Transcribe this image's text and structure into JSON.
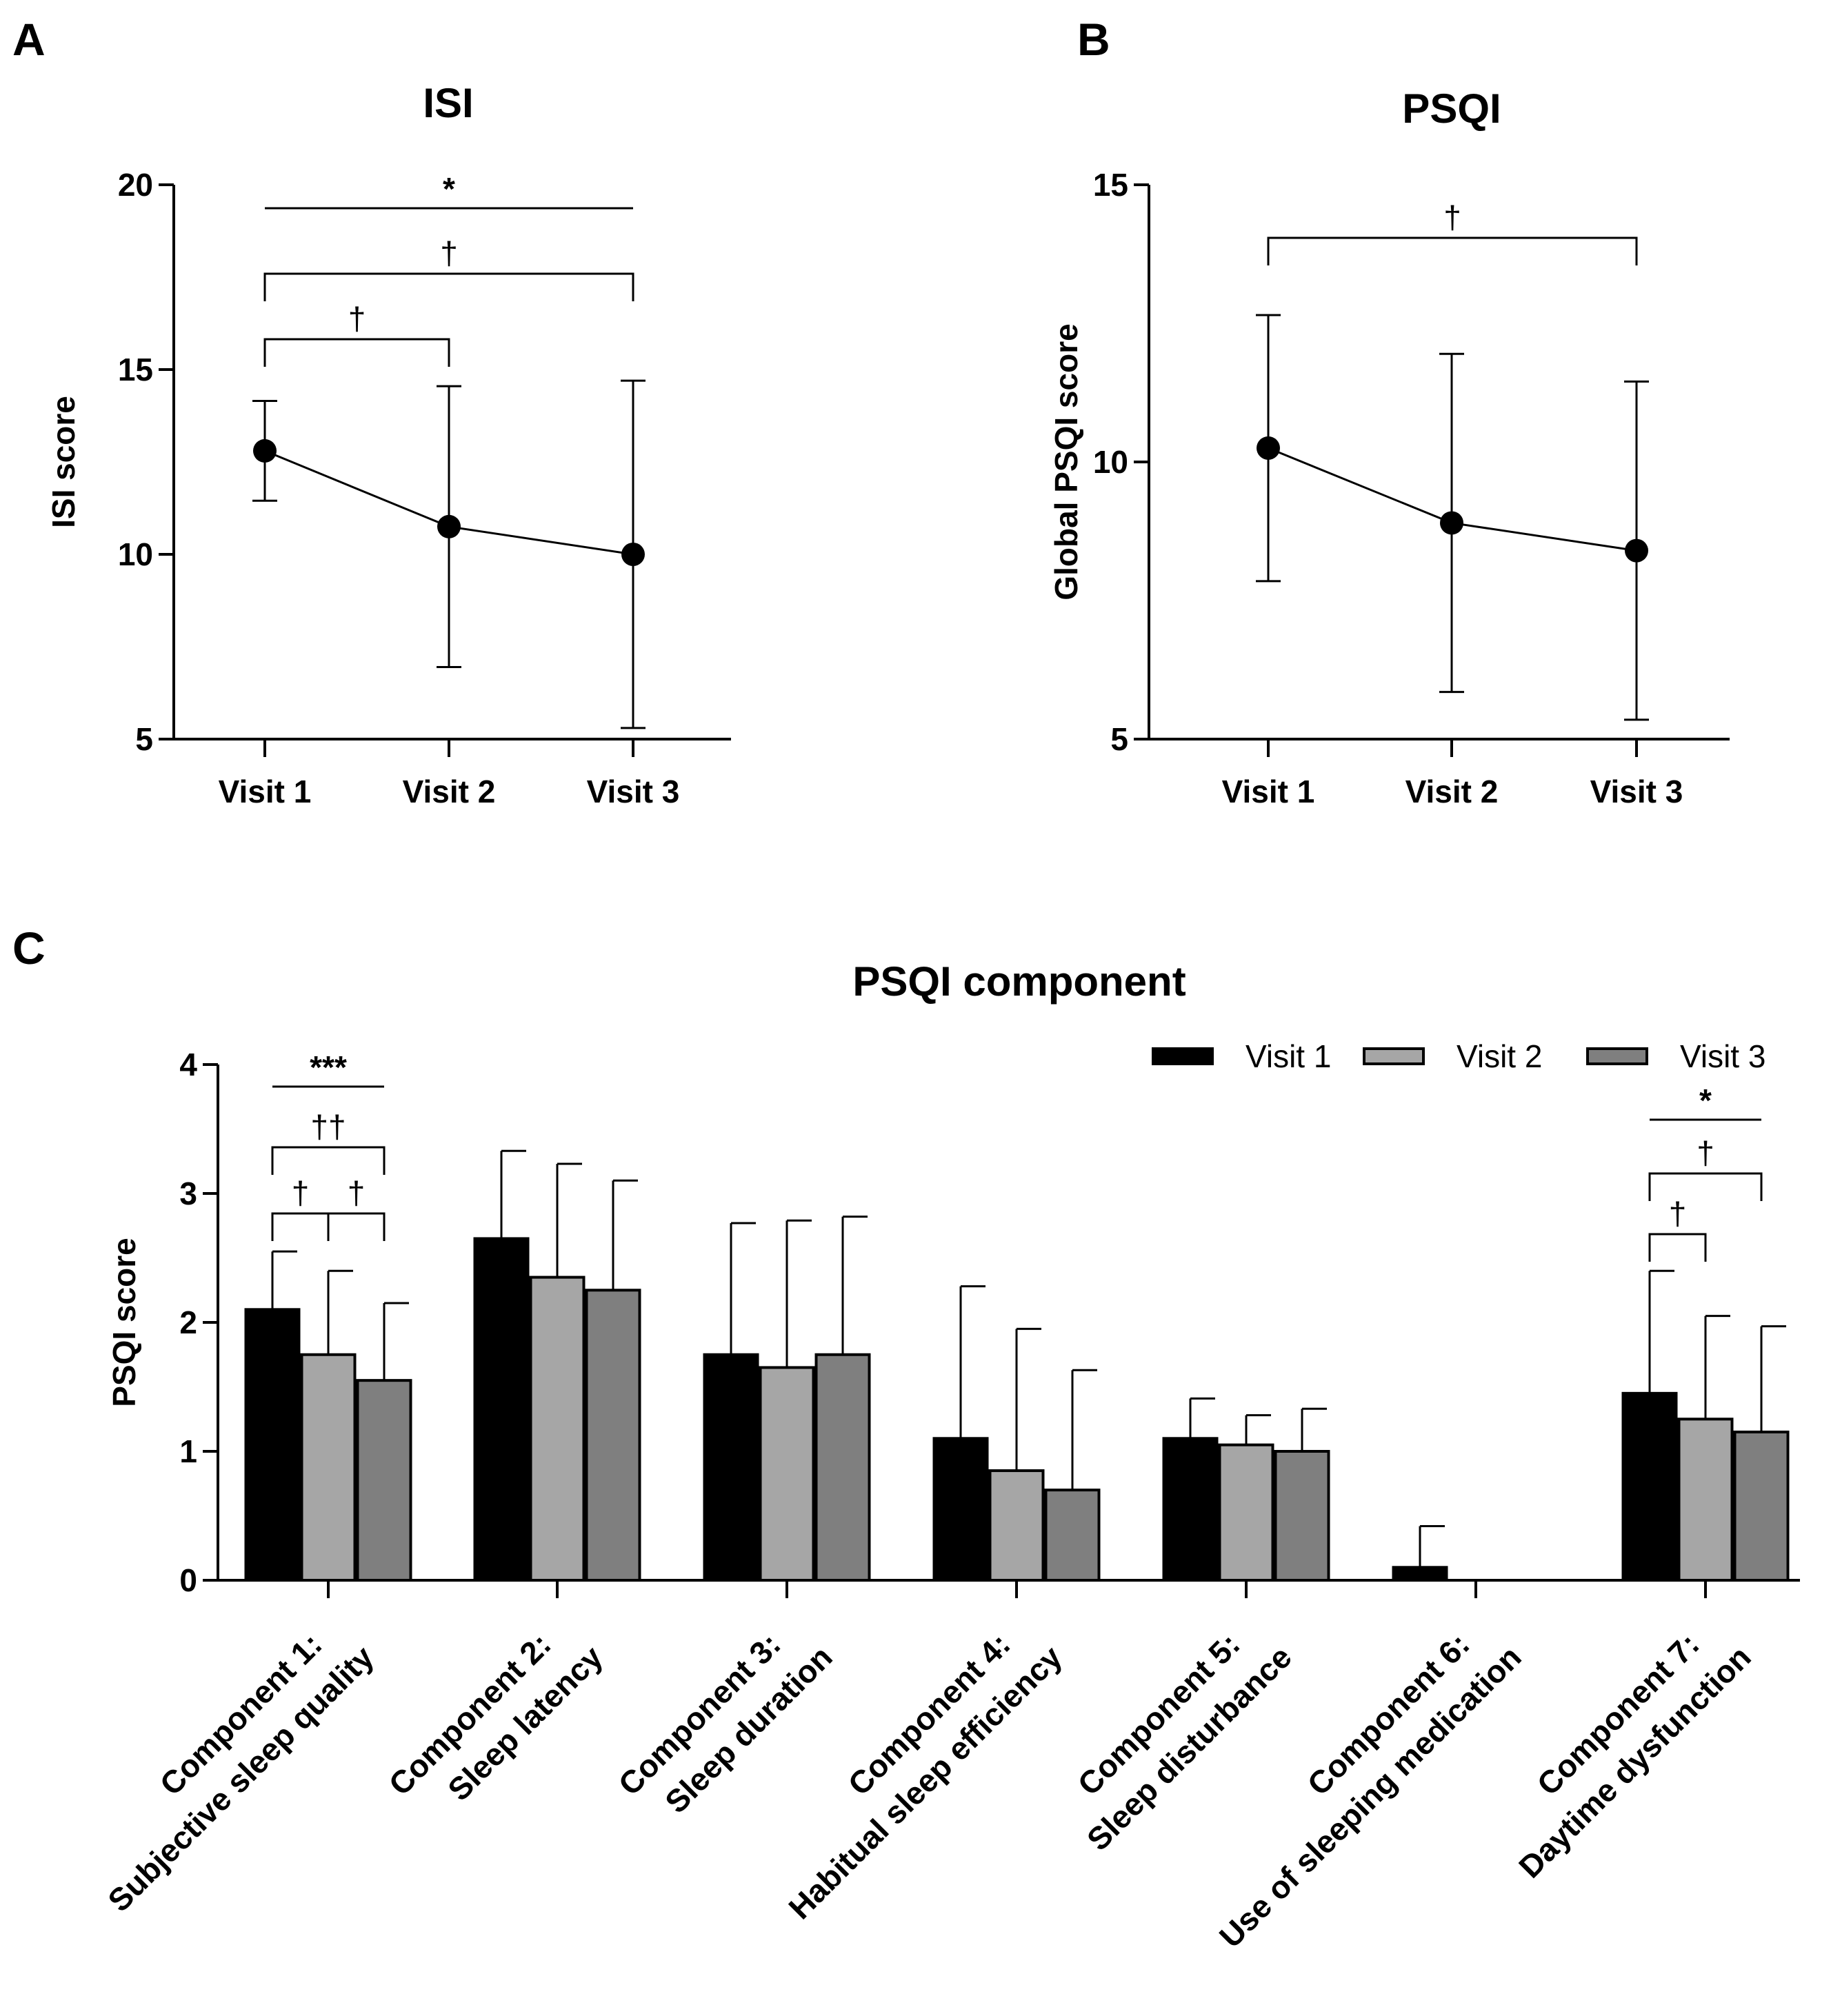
{
  "chart_data": [
    {
      "panel": "A",
      "type": "line",
      "title": "ISI",
      "ylabel": "ISI score",
      "xlabel": "",
      "ylim": [
        5,
        20
      ],
      "yticks": [
        "5",
        "10",
        "15",
        "20"
      ],
      "categories": [
        "Visit 1",
        "Visit 2",
        "Visit 3"
      ],
      "series": [
        {
          "name": "ISI",
          "values": [
            12.8,
            10.75,
            10.0
          ],
          "errors": [
            1.35,
            3.8,
            4.7
          ]
        }
      ],
      "annotations": [
        {
          "from": 1,
          "to": 3,
          "label": "*",
          "style": "line"
        },
        {
          "from": 1,
          "to": 3,
          "label": "†",
          "style": "bracket"
        },
        {
          "from": 1,
          "to": 2,
          "label": "†",
          "style": "bracket"
        }
      ]
    },
    {
      "panel": "B",
      "type": "line",
      "title": "PSQI",
      "ylabel": "Global PSQI score",
      "xlabel": "",
      "ylim": [
        5,
        15
      ],
      "yticks": [
        "5",
        "10",
        "15"
      ],
      "categories": [
        "Visit 1",
        "Visit 2",
        "Visit 3"
      ],
      "series": [
        {
          "name": "PSQI",
          "values": [
            10.25,
            8.9,
            8.4
          ],
          "errors": [
            2.4,
            3.05,
            3.05
          ]
        }
      ],
      "annotations": [
        {
          "from": 1,
          "to": 3,
          "label": "†",
          "style": "bracket"
        }
      ]
    },
    {
      "panel": "C",
      "type": "bar",
      "title": "PSQI component",
      "ylabel": "PSQI score",
      "xlabel": "",
      "ylim": [
        0,
        4
      ],
      "yticks": [
        "0",
        "1",
        "2",
        "3",
        "4"
      ],
      "categories": [
        [
          "Component 1:",
          "Subjective sleep quality"
        ],
        [
          "Component 2:",
          "Sleep latency"
        ],
        [
          "Component 3:",
          "Sleep duration"
        ],
        [
          "Component 4:",
          "Habitual sleep efficiency"
        ],
        [
          "Component 5:",
          "Sleep disturbance"
        ],
        [
          "Component 6:",
          "Use of sleeping medication"
        ],
        [
          "Component 7:",
          "Daytime dysfunction"
        ]
      ],
      "series": [
        {
          "name": "Visit 1",
          "color": "#000000",
          "values": [
            2.1,
            2.65,
            1.75,
            1.1,
            1.1,
            0.1,
            1.45
          ],
          "errors": [
            0.45,
            0.68,
            1.02,
            1.18,
            0.31,
            0.32,
            0.95
          ]
        },
        {
          "name": "Visit 2",
          "color": "#a6a6a6",
          "values": [
            1.75,
            2.35,
            1.65,
            0.85,
            1.05,
            0.0,
            1.25
          ],
          "errors": [
            0.65,
            0.88,
            1.14,
            1.1,
            0.23,
            0.0,
            0.8
          ]
        },
        {
          "name": "Visit 3",
          "color": "#7f7f7f",
          "values": [
            1.55,
            2.25,
            1.75,
            0.7,
            1.0,
            0.0,
            1.15
          ],
          "errors": [
            0.6,
            0.85,
            1.07,
            0.93,
            0.33,
            0.0,
            0.82
          ]
        }
      ],
      "legend": "top-right",
      "annotations": [
        {
          "category": 1,
          "from": 1,
          "to": 3,
          "label": "***",
          "style": "line"
        },
        {
          "category": 1,
          "from": 1,
          "to": 3,
          "label": "††",
          "style": "bracket"
        },
        {
          "category": 1,
          "from": 1,
          "to": 2,
          "label": "†",
          "style": "bracket"
        },
        {
          "category": 1,
          "from": 2,
          "to": 3,
          "label": "†",
          "style": "bracket"
        },
        {
          "category": 7,
          "from": 1,
          "to": 3,
          "label": "*",
          "style": "line"
        },
        {
          "category": 7,
          "from": 1,
          "to": 3,
          "label": "†",
          "style": "bracket"
        },
        {
          "category": 7,
          "from": 1,
          "to": 2,
          "label": "†",
          "style": "bracket"
        }
      ]
    }
  ]
}
